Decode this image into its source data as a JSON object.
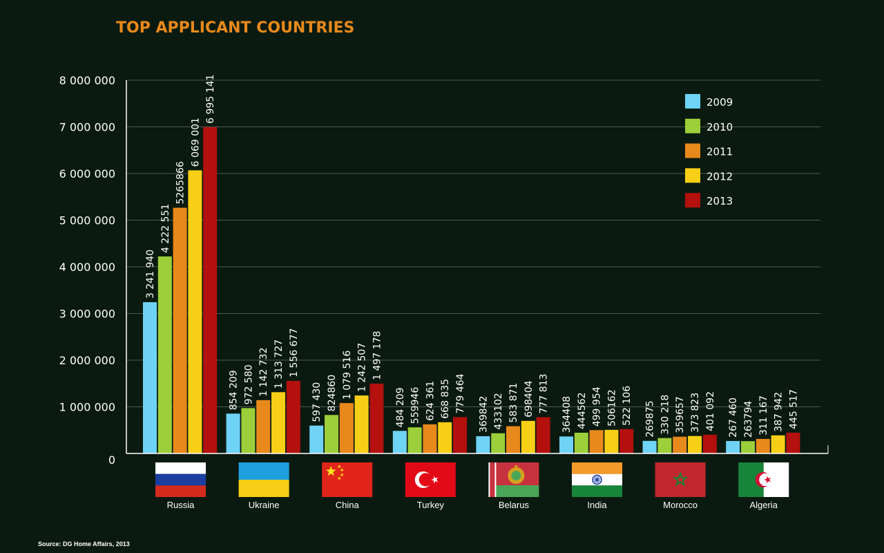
{
  "chart_data": {
    "type": "bar",
    "title": "TOP APPLICANT COUNTRIES",
    "xlabel": "",
    "ylabel": "",
    "ylim": [
      0,
      8000000
    ],
    "yticks": [
      {
        "value": 0,
        "label": "0"
      },
      {
        "value": 1000000,
        "label": "1 000 000"
      },
      {
        "value": 2000000,
        "label": "2 000 000"
      },
      {
        "value": 3000000,
        "label": "3 000 000"
      },
      {
        "value": 4000000,
        "label": "4 000 000"
      },
      {
        "value": 5000000,
        "label": "5 000 000"
      },
      {
        "value": 6000000,
        "label": "6 000 000"
      },
      {
        "value": 7000000,
        "label": "7 000 000"
      },
      {
        "value": 8000000,
        "label": "8 000 000"
      }
    ],
    "grid": true,
    "legend_position": "top-right",
    "categories": [
      "Russia",
      "Ukraine",
      "China",
      "Turkey",
      "Belarus",
      "India",
      "Morocco",
      "Algeria"
    ],
    "flags": [
      "russia-flag-icon",
      "ukraine-flag-icon",
      "china-flag-icon",
      "turkey-flag-icon",
      "belarus-flag-icon",
      "india-flag-icon",
      "morocco-flag-icon",
      "algeria-flag-icon"
    ],
    "series": [
      {
        "name": "2009",
        "color": "#6fd3f5",
        "values": [
          3241940,
          854209,
          597430,
          484209,
          369842,
          364408,
          269875,
          267460
        ],
        "labels": [
          "3 241 940",
          "854 209",
          "597 430",
          "484 209",
          "369842",
          "364408",
          "269875",
          "267 460"
        ]
      },
      {
        "name": "2010",
        "color": "#9ccf3a",
        "values": [
          4222551,
          972580,
          824860,
          559946,
          433102,
          444562,
          330218,
          263794
        ],
        "labels": [
          "4 222 551",
          "972 580",
          "824860",
          "559946",
          "433102",
          "444562",
          "330 218",
          "263794"
        ]
      },
      {
        "name": "2011",
        "color": "#e8891c",
        "values": [
          5265866,
          1142732,
          1079516,
          624361,
          583871,
          499954,
          359657,
          311167
        ],
        "labels": [
          "5265866",
          "1 142 732",
          "1 079 516",
          "624 361",
          "583 871",
          "499 954",
          "359657",
          "311 167"
        ]
      },
      {
        "name": "2012",
        "color": "#f7cf16",
        "values": [
          6069001,
          1313727,
          1242507,
          668835,
          698404,
          506162,
          373823,
          387942
        ],
        "labels": [
          "6 069 001",
          "1 313 727",
          "1 242 507",
          "668 835",
          "698404",
          "506162",
          "373 823",
          "387 942"
        ]
      },
      {
        "name": "2013",
        "color": "#b3100e",
        "values": [
          6995141,
          1556677,
          1497178,
          779464,
          777813,
          522106,
          401092,
          445517
        ],
        "labels": [
          "6 995 141",
          "1 556 677",
          "1 497 178",
          "779 464",
          "777 813",
          "522 106",
          "401 092",
          "445 517"
        ]
      }
    ]
  },
  "source": "Source: DG Home Affairs, 2013"
}
